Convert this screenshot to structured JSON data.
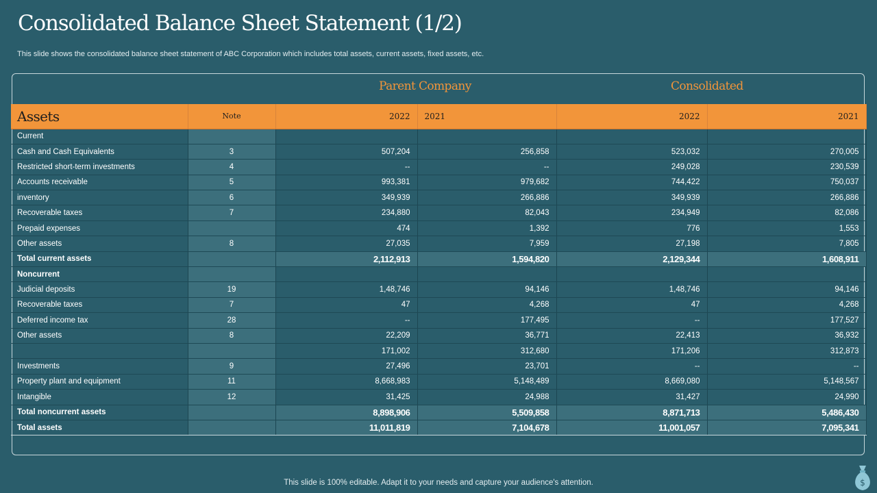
{
  "title": "Consolidated Balance Sheet Statement (1/2)",
  "subtitle": "This slide shows the consolidated  balance sheet statement of ABC Corporation which includes total assets, current assets, fixed assets, etc.",
  "groups": {
    "parent": "Parent Company",
    "consolidated": "Consolidated"
  },
  "header": {
    "assets": "Assets",
    "note": "Note",
    "parent_2022": "2022",
    "parent_2021": "2021",
    "consolidated_2022": "2022",
    "consolidated_2021": "2021"
  },
  "rows": [
    {
      "label": "Current",
      "note": "",
      "p2022": "",
      "p2021": "",
      "c2022": "",
      "c2021": "",
      "style": ""
    },
    {
      "label": "Cash and Cash Equivalents",
      "note": "3",
      "p2022": "507,204",
      "p2021": "256,858",
      "c2022": "523,032",
      "c2021": "270,005",
      "style": ""
    },
    {
      "label": "Restricted short-term investments",
      "note": "4",
      "p2022": "--",
      "p2021": "--",
      "c2022": "249,028",
      "c2021": "230,539",
      "style": ""
    },
    {
      "label": "Accounts receivable",
      "note": "5",
      "p2022": "993,381",
      "p2021": "979,682",
      "c2022": "744,422",
      "c2021": "750,037",
      "style": ""
    },
    {
      "label": "inventory",
      "note": "6",
      "p2022": "349,939",
      "p2021": "266,886",
      "c2022": "349,939",
      "c2021": "266,886",
      "style": ""
    },
    {
      "label": "Recoverable taxes",
      "note": "7",
      "p2022": "234,880",
      "p2021": "82,043",
      "c2022": "234,949",
      "c2021": "82,086",
      "style": ""
    },
    {
      "label": "Prepaid expenses",
      "note": "",
      "p2022": "474",
      "p2021": "1,392",
      "c2022": "776",
      "c2021": "1,553",
      "style": ""
    },
    {
      "label": "Other assets",
      "note": "8",
      "p2022": "27,035",
      "p2021": "7,959",
      "c2022": "27,198",
      "c2021": "7,805",
      "style": ""
    },
    {
      "label": "Total current assets",
      "note": "",
      "p2022": "2,112,913",
      "p2021": "1,594,820",
      "c2022": "2,129,344",
      "c2021": "1,608,911",
      "style": "total"
    },
    {
      "label": "Noncurrent",
      "note": "",
      "p2022": "",
      "p2021": "",
      "c2022": "",
      "c2021": "",
      "style": "sub"
    },
    {
      "label": "Judicial deposits",
      "note": "19",
      "p2022": "1,48,746",
      "p2021": "94,146",
      "c2022": "1,48,746",
      "c2021": "94,146",
      "style": ""
    },
    {
      "label": "Recoverable taxes",
      "note": "7",
      "p2022": "47",
      "p2021": "4,268",
      "c2022": "47",
      "c2021": "4,268",
      "style": ""
    },
    {
      "label": "Deferred income tax",
      "note": "28",
      "p2022": "--",
      "p2021": "177,495",
      "c2022": "--",
      "c2021": "177,527",
      "style": ""
    },
    {
      "label": "Other assets",
      "note": "8",
      "p2022": "22,209",
      "p2021": "36,771",
      "c2022": "22,413",
      "c2021": "36,932",
      "style": ""
    },
    {
      "label": "",
      "note": "",
      "p2022": "171,002",
      "p2021": "312,680",
      "c2022": "171,206",
      "c2021": "312,873",
      "style": ""
    },
    {
      "label": "Investments",
      "note": "9",
      "p2022": "27,496",
      "p2021": "23,701",
      "c2022": "--",
      "c2021": "--",
      "style": ""
    },
    {
      "label": "Property plant and equipment",
      "note": "11",
      "p2022": "8,668,983",
      "p2021": "5,148,489",
      "c2022": "8,669,080",
      "c2021": "5,148,567",
      "style": ""
    },
    {
      "label": "Intangible",
      "note": "12",
      "p2022": "31,425",
      "p2021": "24,988",
      "c2022": "31,427",
      "c2021": "24,990",
      "style": ""
    },
    {
      "label": "Total noncurrent assets",
      "note": "",
      "p2022": "8,898,906",
      "p2021": "5,509,858",
      "c2022": "8,871,713",
      "c2021": "5,486,430",
      "style": "total"
    },
    {
      "label": "Total assets",
      "note": "",
      "p2022": "11,011,819",
      "p2021": "7,104,678",
      "c2022": "11,001,057",
      "c2021": "7,095,341",
      "style": "total grand"
    }
  ],
  "footer": "This slide is 100% editable. Adapt it to your needs and capture your audience's attention.",
  "icons": {
    "footer_icon": "money-bag-icon"
  },
  "colors": {
    "background": "#2a5d6b",
    "accent": "#f2953a",
    "note_column": "#3c6f7c"
  }
}
